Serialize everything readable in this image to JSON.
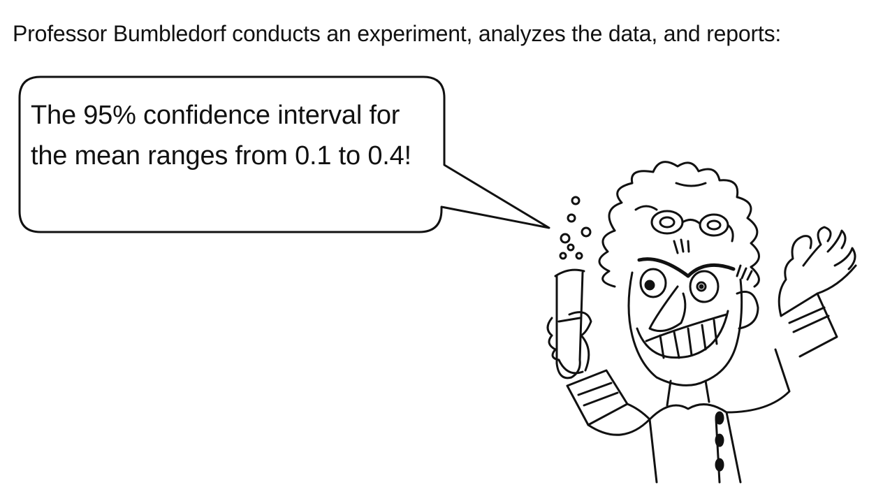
{
  "caption": {
    "text": "Professor Bumbledorf conducts an experiment, analyzes the data, and reports:"
  },
  "speech_bubble": {
    "text": "The 95% confidence interval for the mean ranges from 0.1 to 0.4!"
  },
  "illustration": {
    "subject": "mad-scientist-cartoon",
    "holds": "test-tube-with-bubbles",
    "style": "black-line-art"
  },
  "colors": {
    "line": "#111111",
    "background": "#ffffff"
  }
}
